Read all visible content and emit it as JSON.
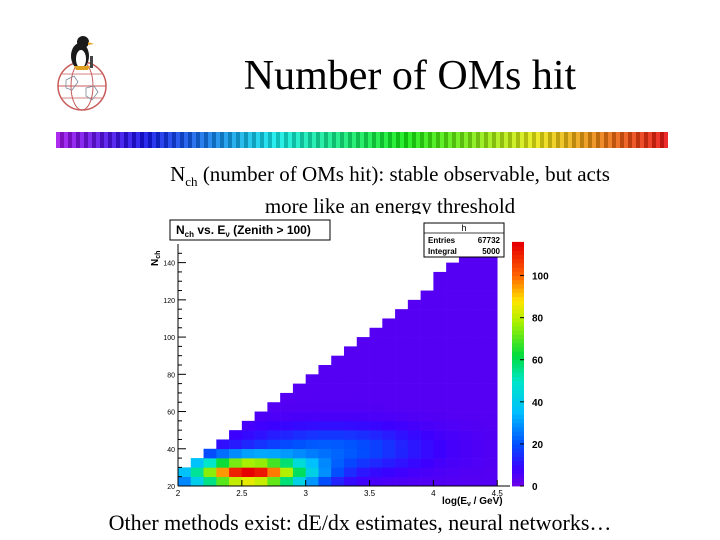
{
  "slide": {
    "title": "Number of OMs hit",
    "subtitle_prefix": "N",
    "subtitle_sub": "ch",
    "subtitle_rest": " (number of OMs hit): stable observable, but acts",
    "subtitle_line2": "more like an energy threshold",
    "footer": "Other methods exist: dE/dx estimates, neural networks…"
  },
  "logo": {
    "icon": "penguin-globe-icon"
  },
  "color_bar": {
    "icon": "rainbow-strip"
  },
  "chart_data": {
    "type": "heatmap",
    "title_parts": [
      "N",
      "ch",
      " vs. E",
      "ν",
      " (Zenith > 100)"
    ],
    "stats_box": {
      "name": "h",
      "entries_label": "Entries",
      "entries_value": "67732",
      "integral_label": "Integral",
      "integral_value": "5000"
    },
    "ylabel_parts": [
      "N",
      "ch"
    ],
    "xlabel_parts": [
      "log(E",
      "ν",
      " / GeV)"
    ],
    "xlim": [
      2,
      4.6
    ],
    "ylim": [
      20,
      150
    ],
    "x_ticks": [
      "2",
      "2.5",
      "3",
      "3.5",
      "4",
      "4.5"
    ],
    "x_tick_values": [
      2,
      2.5,
      3,
      3.5,
      4,
      4.5
    ],
    "y_ticks": [
      "20",
      "40",
      "60",
      "80",
      "100",
      "120",
      "140"
    ],
    "y_tick_values": [
      20,
      40,
      60,
      80,
      100,
      120,
      140
    ],
    "z_ticks": [
      "0",
      "20",
      "40",
      "60",
      "80",
      "100"
    ],
    "z_tick_values": [
      0,
      20,
      40,
      60,
      80,
      100
    ],
    "zlim": [
      0,
      115
    ]
  }
}
